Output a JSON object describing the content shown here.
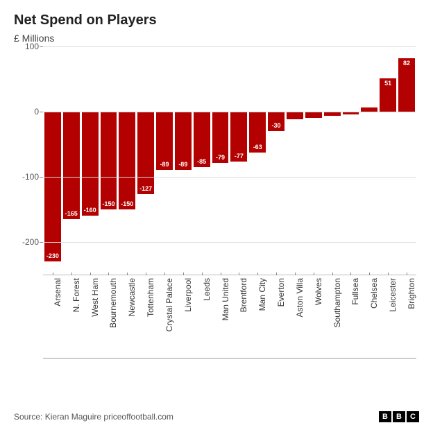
{
  "chart": {
    "type": "bar",
    "title": "Net Spend on Players",
    "subtitle": "£ Millions",
    "title_fontsize": 20,
    "subtitle_fontsize": 14,
    "ylim": [
      -250,
      100
    ],
    "ytick_positions": [
      -200,
      -100,
      0,
      100
    ],
    "ytick_labels": [
      "-200",
      "-100",
      "0",
      "100"
    ],
    "grid_color": "#dcdcdc",
    "axis_color": "#888888",
    "background_color": "#ffffff",
    "bar_color": "#b30000",
    "label_color": "#ffffff",
    "label_fontsize": 9,
    "categories": [
      "Arsenal",
      "N. Forest",
      "West Ham",
      "Bournemouth",
      "Newcastle",
      "Tottenham",
      "Crystal Palace",
      "Liverpool",
      "Leeds",
      "Man United",
      "Brentford",
      "Man City",
      "Everton",
      "Aston Villa",
      "Wolves",
      "Southampton",
      "Fullsea",
      "Chelsea",
      "Leicester",
      "Brighton"
    ],
    "values": [
      -230,
      -165,
      -160,
      -150,
      -150,
      -127,
      -89,
      -89,
      -85,
      -79,
      -77,
      -63,
      -30,
      -12,
      -10,
      -6,
      -4,
      6,
      51,
      82
    ],
    "value_labels": [
      "-230",
      "-165",
      "-160",
      "-150",
      "-150",
      "-127",
      "-89",
      "-89",
      "-85",
      "-79",
      "-77",
      "-63",
      "-30",
      "",
      "",
      "",
      "",
      "",
      "51",
      "82"
    ],
    "xlabel_fontsize": 12
  },
  "source": "Source: Kieran Maguire priceoffootball.com",
  "logo": [
    "B",
    "B",
    "C"
  ]
}
